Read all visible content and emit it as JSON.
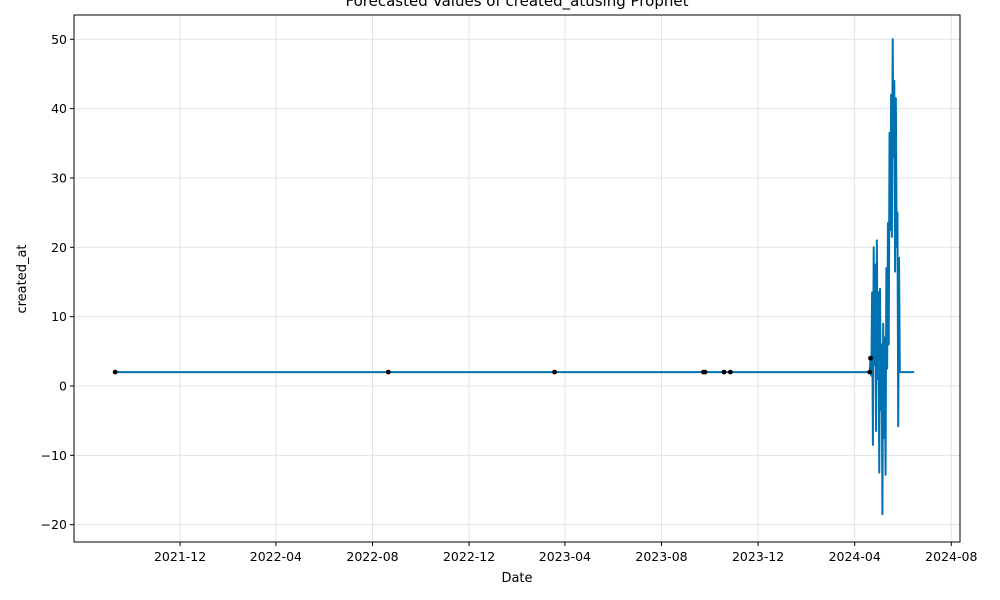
{
  "chart_data": {
    "type": "line",
    "title": "Forecasted Values of created_atusing Prophet",
    "xlabel": "Date",
    "ylabel": "created_at",
    "xlim": [
      "2021-07-20",
      "2024-08-12"
    ],
    "ylim": [
      -22.5,
      53.5
    ],
    "grid": true,
    "x_ticks": [
      "2021-12-01",
      "2022-04-01",
      "2022-08-01",
      "2022-12-01",
      "2023-04-01",
      "2023-08-01",
      "2023-12-01",
      "2024-04-01",
      "2024-08-01"
    ],
    "x_tick_labels": [
      "2021-12",
      "2022-04",
      "2022-08",
      "2022-12",
      "2023-04",
      "2023-08",
      "2023-12",
      "2024-04",
      "2024-08"
    ],
    "y_ticks": [
      -20,
      -10,
      0,
      10,
      20,
      30,
      40,
      50
    ],
    "y_tick_labels": [
      "−20",
      "−10",
      "0",
      "10",
      "20",
      "30",
      "40",
      "50"
    ],
    "series": [
      {
        "kind": "forecast",
        "color": "#0072B2",
        "x": [
          "2021-09-10",
          "2022-08-21",
          "2023-03-19",
          "2023-09-26",
          "2023-10-19",
          "2024-04-20",
          "2024-04-21",
          "2024-04-22",
          "2024-04-23",
          "2024-04-24",
          "2024-04-25",
          "2024-04-26",
          "2024-04-27",
          "2024-04-28",
          "2024-04-29",
          "2024-04-30",
          "2024-05-01",
          "2024-05-02",
          "2024-05-03",
          "2024-05-04",
          "2024-05-05",
          "2024-05-06",
          "2024-05-07",
          "2024-05-08",
          "2024-05-09",
          "2024-05-10",
          "2024-05-11",
          "2024-05-12",
          "2024-05-13",
          "2024-05-14",
          "2024-05-15",
          "2024-05-16",
          "2024-05-17",
          "2024-05-18",
          "2024-05-19",
          "2024-05-20",
          "2024-05-21",
          "2024-05-22",
          "2024-05-23",
          "2024-05-24",
          "2024-05-25",
          "2024-05-26",
          "2024-05-27",
          "2024-05-28",
          "2024-05-29",
          "2024-05-30",
          "2024-05-31",
          "2024-06-01",
          "2024-06-02",
          "2024-06-03",
          "2024-06-04",
          "2024-06-05",
          "2024-06-06",
          "2024-06-07",
          "2024-06-08",
          "2024-06-09",
          "2024-06-10",
          "2024-06-11",
          "2024-06-12",
          "2024-06-13",
          "2024-06-14",
          "2024-06-15"
        ],
        "y": [
          2,
          2,
          2,
          2,
          2,
          2,
          4,
          1.5,
          13.5,
          -8.5,
          20,
          3,
          17.5,
          -6.5,
          21,
          1,
          13.5,
          -12.5,
          14,
          -3.5,
          6,
          -18.5,
          9,
          -7.5,
          7,
          -12.8,
          17,
          2.5,
          23.5,
          6,
          36.5,
          22.5,
          42,
          21.5,
          50,
          33,
          44,
          16.5,
          41.5,
          20,
          25,
          -5.8,
          18.5,
          2,
          2,
          2,
          2,
          2,
          2,
          2,
          2,
          2,
          2,
          2,
          2,
          2,
          2,
          2,
          2,
          2,
          2,
          2
        ]
      }
    ],
    "observed": {
      "color": "#000000",
      "x": [
        "2021-09-10",
        "2022-08-21",
        "2023-03-19",
        "2023-09-23",
        "2023-09-25",
        "2023-10-19",
        "2023-10-27",
        "2024-04-20",
        "2024-04-21"
      ],
      "y": [
        2,
        2,
        2,
        2,
        2,
        2,
        2,
        2,
        4
      ]
    }
  }
}
